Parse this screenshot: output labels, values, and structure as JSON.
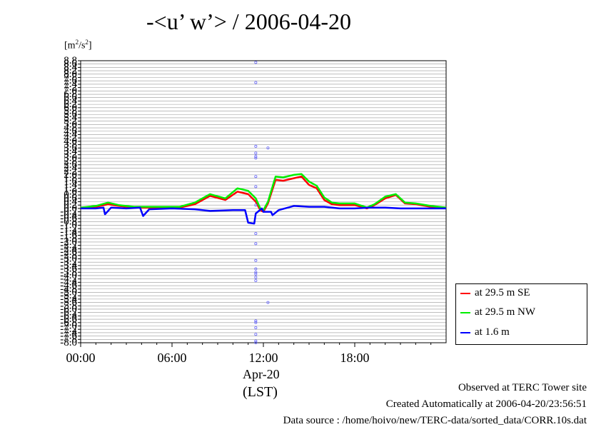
{
  "title": "-<u’ w’> / 2006-04-20",
  "y_unit": {
    "base": "[m",
    "sup": "2",
    "mid": "/s",
    "sup2": "2",
    "end": "]"
  },
  "date_label": "Apr-20",
  "timezone_label": "(LST)",
  "footer": {
    "line1": "Observed at TERC Tower site",
    "line2": "Created Automatically at 2006-04-20/23:56:51",
    "line3": "Data source : /home/hoivo/new/TERC-data/sorted_data/CORR.10s.dat"
  },
  "legend": [
    {
      "label": "at 29.5 m SE",
      "color": "#ff0000"
    },
    {
      "label": "at 29.5 m NW",
      "color": "#00ee00"
    },
    {
      "label": "at 1.6 m",
      "color": "#0000ff"
    }
  ],
  "chart_data": {
    "type": "line",
    "title": "-<u’ w’> / 2006-04-20",
    "ylabel": "[m2/s2]",
    "xlabel": "(LST)",
    "x_ticks": [
      "00:00",
      "06:00",
      "12:00",
      "18:00"
    ],
    "xlim": [
      0,
      24
    ],
    "ylim": [
      -8.0,
      8.8
    ],
    "y_ticks": [
      "8.8",
      "8.6",
      "8.4",
      "8.2",
      "8.0",
      "7.8",
      "7.6",
      "7.4",
      "7.2",
      "7.0",
      "6.8",
      "6.6",
      "6.4",
      "6.2",
      "6.0",
      "5.8",
      "5.6",
      "5.4",
      "5.2",
      "5.0",
      "4.8",
      "4.6",
      "4.4",
      "4.2",
      "4.0",
      "3.8",
      "3.6",
      "3.4",
      "3.2",
      "3.0",
      "2.8",
      "2.6",
      "2.4",
      "2.2",
      "2.0",
      "1.8",
      "1.6",
      "1.4",
      "1.2",
      "1.0",
      "0.8",
      "0.6",
      "0.4",
      "0.2",
      "0.0",
      "-0.2",
      "-0.4",
      "-0.6",
      "-0.8",
      "-1.0",
      "-1.2",
      "-1.4",
      "-1.6",
      "-1.8",
      "-2.0",
      "-2.2",
      "-2.4",
      "-2.6",
      "-2.8",
      "-3.0",
      "-3.2",
      "-3.4",
      "-3.6",
      "-3.8",
      "-4.0",
      "-4.2",
      "-4.4",
      "-4.6",
      "-4.8",
      "-5.0",
      "-5.2",
      "-5.4",
      "-5.6",
      "-5.8",
      "-6.0",
      "-6.2",
      "-6.4",
      "-6.6",
      "-6.8",
      "-7.0",
      "-7.2",
      "-7.4",
      "-7.6",
      "-7.8",
      "-8.0"
    ],
    "grid": true,
    "legend_position": "bottom-right",
    "series": [
      {
        "name": "at 29.5 m SE",
        "color": "#ff0000",
        "x": [
          0,
          1,
          1.8,
          2.5,
          3.5,
          5,
          6.5,
          7.5,
          8.5,
          9.5,
          10.3,
          11,
          11.5,
          11.8,
          12,
          12.3,
          12.8,
          13.3,
          14,
          14.5,
          15,
          15.5,
          16,
          16.5,
          17,
          18,
          18.8,
          19.3,
          20,
          20.7,
          21.3,
          22,
          23,
          24
        ],
        "y": [
          0.05,
          0.1,
          0.25,
          0.15,
          0.05,
          0.05,
          0.05,
          0.25,
          0.75,
          0.5,
          1.0,
          0.85,
          0.4,
          -0.1,
          -0.2,
          0.3,
          1.7,
          1.65,
          1.8,
          1.9,
          1.4,
          1.2,
          0.5,
          0.25,
          0.2,
          0.2,
          0.0,
          0.2,
          0.6,
          0.8,
          0.3,
          0.25,
          0.1,
          0.05
        ]
      },
      {
        "name": "at 29.5 m NW",
        "color": "#00ee00",
        "x": [
          0,
          1,
          1.8,
          2.5,
          3.5,
          5,
          6.5,
          7.5,
          8.5,
          9.5,
          10.3,
          11,
          11.5,
          11.8,
          12,
          12.3,
          12.8,
          13.3,
          14,
          14.5,
          15,
          15.5,
          16,
          16.5,
          17,
          18,
          18.8,
          19.3,
          20,
          20.7,
          21.3,
          22,
          23,
          24
        ],
        "y": [
          0.05,
          0.15,
          0.35,
          0.2,
          0.1,
          0.1,
          0.1,
          0.35,
          0.85,
          0.6,
          1.2,
          1.05,
          0.6,
          0.0,
          -0.1,
          0.4,
          1.9,
          1.85,
          2.0,
          2.05,
          1.6,
          1.35,
          0.65,
          0.35,
          0.3,
          0.3,
          0.05,
          0.25,
          0.7,
          0.85,
          0.35,
          0.3,
          0.15,
          0.05
        ]
      },
      {
        "name": "at 1.6 m",
        "color": "#0000ff",
        "x": [
          0,
          1,
          1.5,
          1.6,
          2,
          3,
          3.9,
          4.1,
          4.5,
          6,
          7.5,
          8.5,
          10,
          10.8,
          11,
          11.4,
          11.5,
          11.9,
          12,
          12.5,
          12.6,
          13,
          14,
          15,
          16,
          17,
          18,
          19,
          20,
          21,
          22,
          23,
          24
        ],
        "y": [
          0.0,
          0.0,
          0.05,
          -0.35,
          0.05,
          0.0,
          0.05,
          -0.45,
          -0.05,
          0.0,
          -0.05,
          -0.15,
          -0.1,
          -0.1,
          -0.85,
          -0.9,
          -0.3,
          0.0,
          -0.2,
          -0.2,
          -0.4,
          -0.1,
          0.15,
          0.1,
          0.1,
          0.0,
          0.0,
          0.05,
          0.05,
          0.0,
          0.0,
          0.0,
          0.0
        ]
      }
    ],
    "outliers": {
      "name": "at 1.6 m",
      "color": "#6666ff",
      "x": [
        11.5,
        11.5,
        11.5,
        11.5,
        11.5,
        11.5,
        11.5,
        11.5,
        11.5,
        11.5,
        11.5,
        11.5,
        11.5,
        11.5,
        11.5,
        11.5,
        11.5,
        11.5,
        11.5,
        11.5,
        11.5,
        11.5,
        11.5,
        12.3,
        12.3
      ],
      "y": [
        8.7,
        7.5,
        3.7,
        3.3,
        3.1,
        3.0,
        1.9,
        1.3,
        0.2,
        -1.5,
        -2.1,
        -3.1,
        -3.6,
        -3.8,
        -3.9,
        -4.1,
        -4.3,
        -6.7,
        -6.8,
        -7.1,
        -7.5,
        -7.9,
        -8.0,
        3.6,
        -5.6
      ]
    }
  }
}
